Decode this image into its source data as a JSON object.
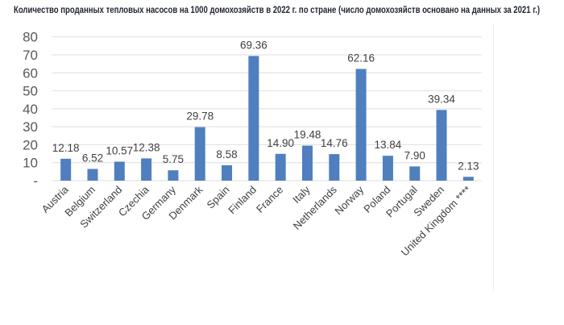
{
  "title": "Количество проданных тепловых насосов на 1000 домохозяйств в 2022 г. по стране (число домохозяйств основано на данных за 2021 г.)",
  "colors": {
    "bar": "#4f7fbe",
    "grid": "#e3e3e3",
    "text": "#404040"
  },
  "chart_data": {
    "type": "bar",
    "title": "Количество проданных тепловых насосов на 1000 домохозяйств в 2022 г. по стране (число домохозяйств основано на данных за 2021 г.)",
    "xlabel": "",
    "ylabel": "",
    "categories": [
      "Austria",
      "Belgium",
      "Switzerland",
      "Czechia",
      "Germany",
      "Denmark",
      "Spain",
      "Finland",
      "France",
      "Italy",
      "Netherlands",
      "Norway",
      "Poland",
      "Portugal",
      "Sweden",
      "United Kingdom ****"
    ],
    "values": [
      12.18,
      6.52,
      10.57,
      12.38,
      5.75,
      29.78,
      8.58,
      69.36,
      14.9,
      19.48,
      14.76,
      62.16,
      13.84,
      7.9,
      39.34,
      2.13
    ],
    "value_labels": [
      "12.18",
      "6.52",
      "10.57",
      "12.38",
      "5.75",
      "29.78",
      "8.58",
      "69.36",
      "14.90",
      "19.48",
      "14.76",
      "62.16",
      "13.84",
      "7.90",
      "39.34",
      "2.13"
    ],
    "ylim": [
      0,
      80
    ],
    "yticks": [
      0,
      10,
      20,
      30,
      40,
      50,
      60,
      70,
      80
    ],
    "ytick_labels": [
      "-",
      "10",
      "20",
      "30",
      "40",
      "50",
      "60",
      "70",
      "80"
    ],
    "grid": true,
    "legend": "none"
  }
}
